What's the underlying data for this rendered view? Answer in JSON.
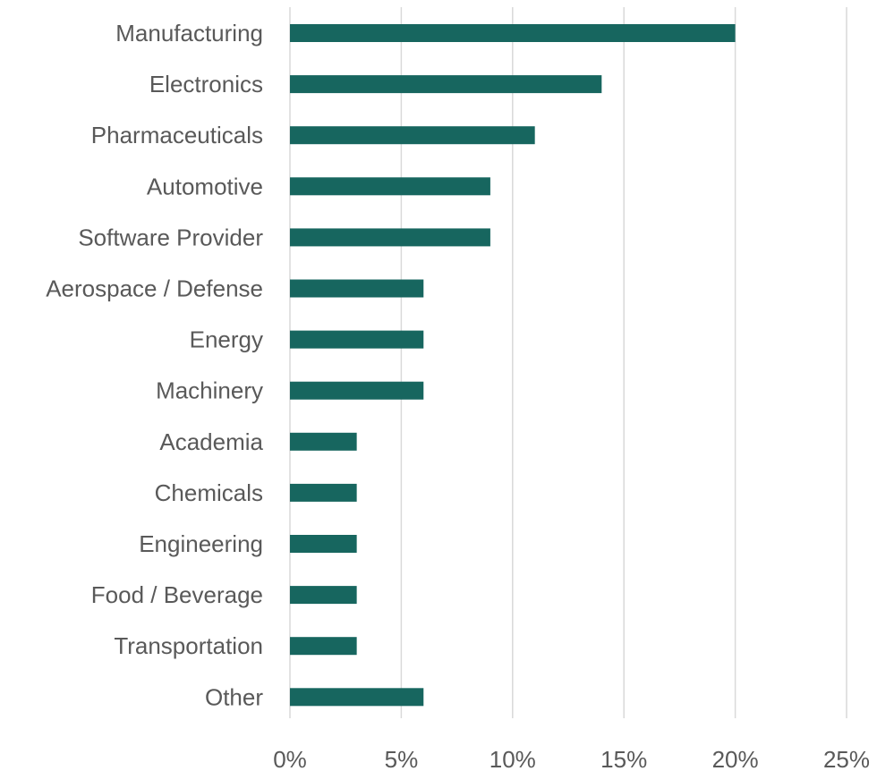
{
  "chart_data": {
    "type": "bar",
    "orientation": "horizontal",
    "categories": [
      "Manufacturing",
      "Electronics",
      "Pharmaceuticals",
      "Automotive",
      "Software Provider",
      "Aerospace / Defense",
      "Energy",
      "Machinery",
      "Academia",
      "Chemicals",
      "Engineering",
      "Food / Beverage",
      "Transportation",
      "Other"
    ],
    "values": [
      20,
      14,
      11,
      9,
      9,
      6,
      6,
      6,
      3,
      3,
      3,
      3,
      3,
      6
    ],
    "unit": "%",
    "xlim": [
      0,
      25
    ],
    "ticks": [
      "0%",
      "5%",
      "10%",
      "15%",
      "20%",
      "25%"
    ],
    "grid": "vertical",
    "bar_color": "#17665f",
    "grid_color": "#d9d9d9",
    "text_color": "#595959",
    "title": "",
    "xlabel": "",
    "ylabel": ""
  }
}
